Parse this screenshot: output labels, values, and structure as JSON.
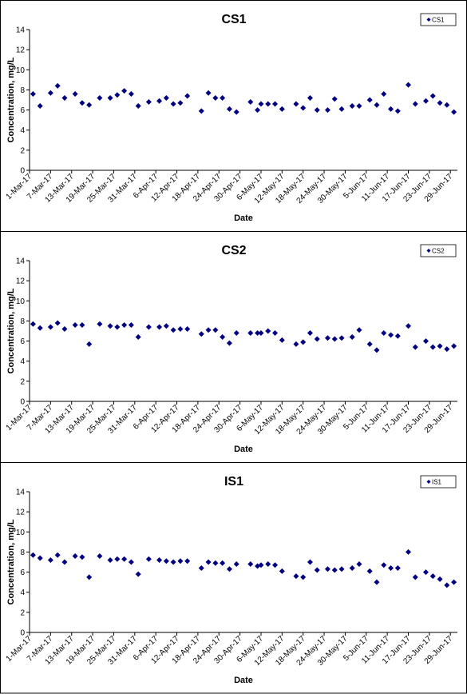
{
  "chart_data": [
    {
      "type": "scatter",
      "title": "CS1",
      "xlabel": "Date",
      "ylabel": "Concentration, mg/L",
      "x": [
        "2017-03-02",
        "2017-03-04",
        "2017-03-07",
        "2017-03-09",
        "2017-03-11",
        "2017-03-14",
        "2017-03-16",
        "2017-03-18",
        "2017-03-21",
        "2017-03-24",
        "2017-03-26",
        "2017-03-28",
        "2017-03-30",
        "2017-04-01",
        "2017-04-04",
        "2017-04-07",
        "2017-04-09",
        "2017-04-11",
        "2017-04-13",
        "2017-04-15",
        "2017-04-19",
        "2017-04-21",
        "2017-04-23",
        "2017-04-25",
        "2017-04-27",
        "2017-04-29",
        "2017-05-03",
        "2017-05-05",
        "2017-05-06",
        "2017-05-08",
        "2017-05-10",
        "2017-05-12",
        "2017-05-16",
        "2017-05-18",
        "2017-05-20",
        "2017-05-22",
        "2017-05-25",
        "2017-05-27",
        "2017-05-29",
        "2017-06-01",
        "2017-06-03",
        "2017-06-06",
        "2017-06-08",
        "2017-06-10",
        "2017-06-12",
        "2017-06-14",
        "2017-06-17",
        "2017-06-19",
        "2017-06-22",
        "2017-06-24",
        "2017-06-26",
        "2017-06-28",
        "2017-06-30"
      ],
      "series": [
        {
          "name": "CS1",
          "color": "#000080",
          "values": [
            7.6,
            6.4,
            7.7,
            8.4,
            7.2,
            7.6,
            6.7,
            6.5,
            7.2,
            7.2,
            7.5,
            7.9,
            7.6,
            6.4,
            6.8,
            6.9,
            7.2,
            6.6,
            6.7,
            7.4,
            5.9,
            7.7,
            7.2,
            7.2,
            6.1,
            5.8,
            6.8,
            6.0,
            6.6,
            6.6,
            6.6,
            6.1,
            6.6,
            6.2,
            7.2,
            6.0,
            6.0,
            7.1,
            6.1,
            6.4,
            6.4,
            7.0,
            6.5,
            7.6,
            6.1,
            5.9,
            8.5,
            6.6,
            6.9,
            7.4,
            6.7,
            6.5,
            5.8
          ]
        }
      ],
      "xlim": [
        "2017-03-01",
        "2017-07-01"
      ],
      "ylim": [
        0,
        14
      ],
      "yticks": [
        0,
        2,
        4,
        6,
        8,
        10,
        12,
        14
      ],
      "xticks": [
        {
          "value": "2017-03-01",
          "label": "1-Mar-17"
        },
        {
          "value": "2017-03-07",
          "label": "7-Mar-17"
        },
        {
          "value": "2017-03-13",
          "label": "13-Mar-17"
        },
        {
          "value": "2017-03-19",
          "label": "19-Mar-17"
        },
        {
          "value": "2017-03-25",
          "label": "25-Mar-17"
        },
        {
          "value": "2017-03-31",
          "label": "31-Mar-17"
        },
        {
          "value": "2017-04-06",
          "label": "6-Apr-17"
        },
        {
          "value": "2017-04-12",
          "label": "12-Apr-17"
        },
        {
          "value": "2017-04-18",
          "label": "18-Apr-17"
        },
        {
          "value": "2017-04-24",
          "label": "24-Apr-17"
        },
        {
          "value": "2017-04-30",
          "label": "30-Apr-17"
        },
        {
          "value": "2017-05-06",
          "label": "6-May-17"
        },
        {
          "value": "2017-05-12",
          "label": "12-May-17"
        },
        {
          "value": "2017-05-18",
          "label": "18-May-17"
        },
        {
          "value": "2017-05-24",
          "label": "24-May-17"
        },
        {
          "value": "2017-05-30",
          "label": "30-May-17"
        },
        {
          "value": "2017-06-05",
          "label": "5-Jun-17"
        },
        {
          "value": "2017-06-11",
          "label": "11-Jun-17"
        },
        {
          "value": "2017-06-17",
          "label": "17-Jun-17"
        },
        {
          "value": "2017-06-23",
          "label": "23-Jun-17"
        },
        {
          "value": "2017-06-29",
          "label": "29-Jun-17"
        }
      ],
      "legend": "top-right"
    },
    {
      "type": "scatter",
      "title": "CS2",
      "xlabel": "Date",
      "ylabel": "Concentration, mg/L",
      "x": [
        "2017-03-02",
        "2017-03-04",
        "2017-03-07",
        "2017-03-09",
        "2017-03-11",
        "2017-03-14",
        "2017-03-16",
        "2017-03-18",
        "2017-03-21",
        "2017-03-24",
        "2017-03-26",
        "2017-03-28",
        "2017-03-30",
        "2017-04-01",
        "2017-04-04",
        "2017-04-07",
        "2017-04-09",
        "2017-04-11",
        "2017-04-13",
        "2017-04-15",
        "2017-04-19",
        "2017-04-21",
        "2017-04-23",
        "2017-04-25",
        "2017-04-27",
        "2017-04-29",
        "2017-05-03",
        "2017-05-05",
        "2017-05-06",
        "2017-05-08",
        "2017-05-10",
        "2017-05-12",
        "2017-05-16",
        "2017-05-18",
        "2017-05-20",
        "2017-05-22",
        "2017-05-25",
        "2017-05-27",
        "2017-05-29",
        "2017-06-01",
        "2017-06-03",
        "2017-06-06",
        "2017-06-08",
        "2017-06-10",
        "2017-06-12",
        "2017-06-14",
        "2017-06-17",
        "2017-06-19",
        "2017-06-22",
        "2017-06-24",
        "2017-06-26",
        "2017-06-28",
        "2017-06-30"
      ],
      "series": [
        {
          "name": "CS2",
          "color": "#000080",
          "values": [
            7.7,
            7.3,
            7.4,
            7.8,
            7.2,
            7.6,
            7.6,
            5.7,
            7.7,
            7.5,
            7.4,
            7.6,
            7.6,
            6.4,
            7.4,
            7.4,
            7.5,
            7.1,
            7.2,
            7.2,
            6.7,
            7.1,
            7.1,
            6.4,
            5.8,
            6.8,
            6.8,
            6.8,
            6.8,
            7.0,
            6.8,
            6.1,
            5.7,
            5.9,
            6.8,
            6.2,
            6.3,
            6.2,
            6.3,
            6.4,
            7.1,
            5.7,
            5.1,
            6.8,
            6.6,
            6.5,
            7.5,
            5.4,
            6.0,
            5.4,
            5.5,
            5.2,
            5.5
          ]
        }
      ],
      "xlim": [
        "2017-03-01",
        "2017-07-01"
      ],
      "ylim": [
        0,
        14
      ],
      "yticks": [
        0,
        2,
        4,
        6,
        8,
        10,
        12,
        14
      ],
      "xticks": [
        {
          "value": "2017-03-01",
          "label": "1-Mar-17"
        },
        {
          "value": "2017-03-07",
          "label": "7-Mar-17"
        },
        {
          "value": "2017-03-13",
          "label": "13-Mar-17"
        },
        {
          "value": "2017-03-19",
          "label": "19-Mar-17"
        },
        {
          "value": "2017-03-25",
          "label": "25-Mar-17"
        },
        {
          "value": "2017-03-31",
          "label": "31-Mar-17"
        },
        {
          "value": "2017-04-06",
          "label": "6-Apr-17"
        },
        {
          "value": "2017-04-12",
          "label": "12-Apr-17"
        },
        {
          "value": "2017-04-18",
          "label": "18-Apr-17"
        },
        {
          "value": "2017-04-24",
          "label": "24-Apr-17"
        },
        {
          "value": "2017-04-30",
          "label": "30-Apr-17"
        },
        {
          "value": "2017-05-06",
          "label": "6-May-17"
        },
        {
          "value": "2017-05-12",
          "label": "12-May-17"
        },
        {
          "value": "2017-05-18",
          "label": "18-May-17"
        },
        {
          "value": "2017-05-24",
          "label": "24-May-17"
        },
        {
          "value": "2017-05-30",
          "label": "30-May-17"
        },
        {
          "value": "2017-06-05",
          "label": "5-Jun-17"
        },
        {
          "value": "2017-06-11",
          "label": "11-Jun-17"
        },
        {
          "value": "2017-06-17",
          "label": "17-Jun-17"
        },
        {
          "value": "2017-06-23",
          "label": "23-Jun-17"
        },
        {
          "value": "2017-06-29",
          "label": "29-Jun-17"
        }
      ],
      "legend": "top-right"
    },
    {
      "type": "scatter",
      "title": "IS1",
      "xlabel": "Date",
      "ylabel": "Concentration, mg/L",
      "x": [
        "2017-03-02",
        "2017-03-04",
        "2017-03-07",
        "2017-03-09",
        "2017-03-11",
        "2017-03-14",
        "2017-03-16",
        "2017-03-18",
        "2017-03-21",
        "2017-03-24",
        "2017-03-26",
        "2017-03-28",
        "2017-03-30",
        "2017-04-01",
        "2017-04-04",
        "2017-04-07",
        "2017-04-09",
        "2017-04-11",
        "2017-04-13",
        "2017-04-15",
        "2017-04-19",
        "2017-04-21",
        "2017-04-23",
        "2017-04-25",
        "2017-04-27",
        "2017-04-29",
        "2017-05-03",
        "2017-05-05",
        "2017-05-06",
        "2017-05-08",
        "2017-05-10",
        "2017-05-12",
        "2017-05-16",
        "2017-05-18",
        "2017-05-20",
        "2017-05-22",
        "2017-05-25",
        "2017-05-27",
        "2017-05-29",
        "2017-06-01",
        "2017-06-03",
        "2017-06-06",
        "2017-06-08",
        "2017-06-10",
        "2017-06-12",
        "2017-06-14",
        "2017-06-17",
        "2017-06-19",
        "2017-06-22",
        "2017-06-24",
        "2017-06-26",
        "2017-06-28",
        "2017-06-30"
      ],
      "series": [
        {
          "name": "IS1",
          "color": "#000080",
          "values": [
            7.7,
            7.4,
            7.2,
            7.7,
            7.0,
            7.6,
            7.5,
            5.5,
            7.6,
            7.2,
            7.3,
            7.3,
            7.0,
            5.8,
            7.3,
            7.2,
            7.1,
            7.0,
            7.1,
            7.1,
            6.4,
            7.0,
            6.9,
            6.9,
            6.3,
            6.8,
            6.8,
            6.6,
            6.7,
            6.8,
            6.7,
            6.1,
            5.6,
            5.5,
            7.0,
            6.2,
            6.3,
            6.2,
            6.3,
            6.4,
            6.8,
            6.1,
            5.0,
            6.7,
            6.4,
            6.4,
            8.0,
            5.5,
            6.0,
            5.6,
            5.3,
            4.7,
            5.0
          ]
        }
      ],
      "xlim": [
        "2017-03-01",
        "2017-07-01"
      ],
      "ylim": [
        0,
        14
      ],
      "yticks": [
        0,
        2,
        4,
        6,
        8,
        10,
        12,
        14
      ],
      "xticks": [
        {
          "value": "2017-03-01",
          "label": "1-Mar-17"
        },
        {
          "value": "2017-03-07",
          "label": "7-Mar-17"
        },
        {
          "value": "2017-03-13",
          "label": "13-Mar-17"
        },
        {
          "value": "2017-03-19",
          "label": "19-Mar-17"
        },
        {
          "value": "2017-03-25",
          "label": "25-Mar-17"
        },
        {
          "value": "2017-03-31",
          "label": "31-Mar-17"
        },
        {
          "value": "2017-04-06",
          "label": "6-Apr-17"
        },
        {
          "value": "2017-04-12",
          "label": "12-Apr-17"
        },
        {
          "value": "2017-04-18",
          "label": "18-Apr-17"
        },
        {
          "value": "2017-04-24",
          "label": "24-Apr-17"
        },
        {
          "value": "2017-04-30",
          "label": "30-Apr-17"
        },
        {
          "value": "2017-05-06",
          "label": "6-May-17"
        },
        {
          "value": "2017-05-12",
          "label": "12-May-17"
        },
        {
          "value": "2017-05-18",
          "label": "18-May-17"
        },
        {
          "value": "2017-05-24",
          "label": "24-May-17"
        },
        {
          "value": "2017-05-30",
          "label": "30-May-17"
        },
        {
          "value": "2017-06-05",
          "label": "5-Jun-17"
        },
        {
          "value": "2017-06-11",
          "label": "11-Jun-17"
        },
        {
          "value": "2017-06-17",
          "label": "17-Jun-17"
        },
        {
          "value": "2017-06-23",
          "label": "23-Jun-17"
        },
        {
          "value": "2017-06-29",
          "label": "29-Jun-17"
        }
      ],
      "legend": "top-right"
    }
  ]
}
